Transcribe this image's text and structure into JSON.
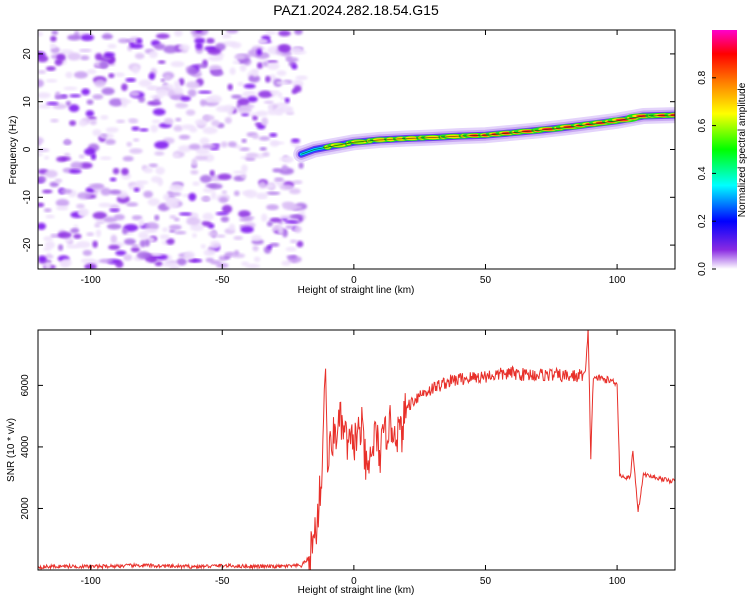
{
  "title": "PAZ1.2024.282.18.54.G15",
  "chart_data": [
    {
      "type": "heatmap",
      "title": "PAZ1.2024.282.18.54.G15",
      "xlabel": "Height of straight line (km)",
      "ylabel": "Frequency (Hz)",
      "xlim": [
        -120,
        122
      ],
      "ylim": [
        -25,
        25
      ],
      "xticks": [
        -100,
        -50,
        0,
        50,
        100
      ],
      "yticks": [
        -20,
        -10,
        0,
        10,
        20
      ],
      "colorbar": {
        "label": "Normalized spectral amplitude",
        "range": [
          0,
          1
        ],
        "ticks": [
          "0.0",
          "0.2",
          "0.4",
          "0.6",
          "0.8"
        ],
        "colors": [
          "#ffffff",
          "#8a2be2",
          "#0000ff",
          "#00ffff",
          "#00ff00",
          "#ffff00",
          "#ff7f00",
          "#ff0000",
          "#ff00cc"
        ]
      },
      "noise_region_x": [
        -120,
        -18
      ],
      "ridge": {
        "x": [
          -20,
          -15,
          -10,
          -5,
          0,
          10,
          20,
          30,
          40,
          50,
          60,
          70,
          80,
          90,
          100,
          105,
          110,
          122
        ],
        "frequency": [
          -1,
          0,
          0.5,
          1,
          1.5,
          2,
          2.3,
          2.5,
          2.8,
          3,
          3.5,
          4,
          4.6,
          5.3,
          6,
          6.5,
          7,
          7.2
        ]
      }
    },
    {
      "type": "line",
      "xlabel": "Height of straight line (km)",
      "ylabel": "SNR (10 * v/v)",
      "xlim": [
        -120,
        122
      ],
      "ylim": [
        0,
        7800
      ],
      "xticks": [
        -100,
        -50,
        0,
        50,
        100
      ],
      "yticks": [
        2000,
        4000,
        6000
      ],
      "color": "#e8302a",
      "series": [
        {
          "x": [
            -120,
            -110,
            -100,
            -90,
            -80,
            -70,
            -60,
            -50,
            -40,
            -30,
            -20,
            -17,
            -14,
            -12,
            -11,
            -10,
            -8,
            -5,
            -2,
            0,
            3,
            5,
            8,
            10,
            13,
            15,
            18,
            20,
            25,
            30,
            35,
            40,
            45,
            50,
            55,
            60,
            65,
            70,
            75,
            80,
            85,
            88,
            89,
            90,
            91,
            92,
            95,
            100,
            101,
            102,
            103,
            105,
            106,
            108,
            110,
            115,
            120,
            122
          ],
          "y": [
            100,
            120,
            110,
            130,
            150,
            120,
            110,
            140,
            120,
            110,
            140,
            400,
            1500,
            3300,
            6800,
            3500,
            4300,
            4800,
            4000,
            4200,
            4600,
            3000,
            4400,
            3800,
            4700,
            4600,
            4400,
            5300,
            5700,
            5900,
            6100,
            6200,
            6250,
            6300,
            6350,
            6400,
            6350,
            6350,
            6350,
            6300,
            6300,
            6400,
            7800,
            3700,
            6300,
            6250,
            6200,
            6100,
            3100,
            3050,
            3000,
            3000,
            3900,
            1900,
            3100,
            3000,
            2900,
            2900
          ]
        }
      ]
    }
  ]
}
